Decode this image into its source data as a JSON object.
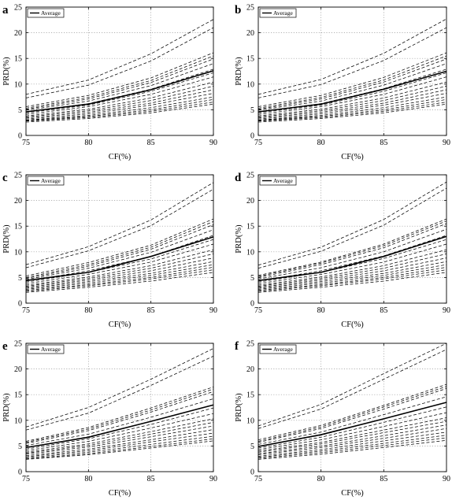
{
  "figure": {
    "x_axis_label": "CF(%)",
    "y_axis_label": "PRD(%)",
    "legend_label": "Average"
  },
  "chart_data": [
    {
      "panel": "a",
      "type": "line",
      "xlabel": "CF(%)",
      "ylabel": "PRD(%)",
      "xlim": [
        75,
        90
      ],
      "ylim": [
        0,
        25
      ],
      "xticks": [
        75,
        80,
        85,
        90
      ],
      "yticks": [
        0,
        5,
        10,
        15,
        20,
        25
      ],
      "grid": true,
      "legend_position": "top-left",
      "x": [
        75,
        80,
        85,
        90
      ],
      "average": [
        4.6,
        6.1,
        8.9,
        12.6
      ],
      "lines": [
        [
          8.0,
          10.8,
          15.9,
          22.6
        ],
        [
          7.3,
          9.8,
          14.5,
          21.0
        ],
        [
          5.6,
          7.8,
          11.2,
          16.1
        ],
        [
          5.3,
          7.4,
          10.7,
          15.5
        ],
        [
          5.1,
          7.1,
          10.3,
          14.9
        ],
        [
          4.9,
          6.7,
          9.7,
          14.0
        ],
        [
          4.6,
          6.2,
          9.0,
          12.9
        ],
        [
          4.4,
          5.9,
          8.6,
          12.2
        ],
        [
          4.1,
          5.6,
          8.0,
          11.4
        ],
        [
          3.8,
          5.1,
          7.3,
          10.4
        ],
        [
          3.6,
          4.8,
          6.8,
          9.6
        ],
        [
          3.4,
          4.5,
          6.3,
          8.9
        ],
        [
          3.2,
          4.2,
          5.9,
          8.2
        ],
        [
          3.0,
          3.9,
          5.4,
          7.5
        ],
        [
          2.9,
          3.7,
          5.0,
          7.0
        ],
        [
          2.8,
          3.5,
          4.7,
          6.5
        ],
        [
          2.6,
          3.3,
          4.4,
          6.1
        ]
      ]
    },
    {
      "panel": "b",
      "type": "line",
      "xlabel": "CF(%)",
      "ylabel": "PRD(%)",
      "xlim": [
        75,
        90
      ],
      "ylim": [
        0,
        25
      ],
      "xticks": [
        75,
        80,
        85,
        90
      ],
      "yticks": [
        0,
        5,
        10,
        15,
        20,
        25
      ],
      "grid": true,
      "legend_position": "top-left",
      "x": [
        75,
        80,
        85,
        90
      ],
      "average": [
        4.6,
        6.1,
        9.0,
        12.5
      ],
      "lines": [
        [
          8.0,
          10.9,
          16.0,
          22.7
        ],
        [
          7.3,
          9.9,
          14.6,
          21.0
        ],
        [
          5.6,
          7.8,
          11.3,
          16.1
        ],
        [
          5.3,
          7.4,
          10.8,
          15.5
        ],
        [
          5.1,
          7.1,
          10.4,
          14.9
        ],
        [
          4.9,
          6.7,
          9.8,
          14.0
        ],
        [
          4.6,
          6.2,
          9.1,
          12.9
        ],
        [
          4.4,
          5.9,
          8.6,
          12.2
        ],
        [
          4.1,
          5.6,
          8.0,
          11.4
        ],
        [
          3.8,
          5.1,
          7.3,
          10.4
        ],
        [
          3.6,
          4.8,
          6.8,
          9.6
        ],
        [
          3.4,
          4.5,
          6.3,
          8.9
        ],
        [
          3.2,
          4.2,
          5.9,
          8.2
        ],
        [
          3.0,
          3.9,
          5.4,
          7.5
        ],
        [
          2.9,
          3.7,
          5.0,
          7.0
        ],
        [
          2.8,
          3.5,
          4.7,
          6.5
        ],
        [
          2.6,
          3.3,
          4.4,
          6.1
        ]
      ]
    },
    {
      "panel": "c",
      "type": "line",
      "xlabel": "CF(%)",
      "ylabel": "PRD(%)",
      "xlim": [
        75,
        90
      ],
      "ylim": [
        0,
        25
      ],
      "xticks": [
        75,
        80,
        85,
        90
      ],
      "yticks": [
        0,
        5,
        10,
        15,
        20,
        25
      ],
      "grid": true,
      "legend_position": "top-left",
      "x": [
        75,
        80,
        85,
        90
      ],
      "average": [
        4.4,
        6.0,
        9.1,
        12.9
      ],
      "lines": [
        [
          7.5,
          11.0,
          16.2,
          23.5
        ],
        [
          6.9,
          10.2,
          15.1,
          22.2
        ],
        [
          5.3,
          7.9,
          11.3,
          16.4
        ],
        [
          5.0,
          7.5,
          10.9,
          15.9
        ],
        [
          4.8,
          7.2,
          10.5,
          15.3
        ],
        [
          4.6,
          6.8,
          9.9,
          14.3
        ],
        [
          4.3,
          6.3,
          9.1,
          13.2
        ],
        [
          4.1,
          6.0,
          8.6,
          12.4
        ],
        [
          3.8,
          5.6,
          8.0,
          11.5
        ],
        [
          3.5,
          5.1,
          7.3,
          10.4
        ],
        [
          3.3,
          4.8,
          6.8,
          9.6
        ],
        [
          3.1,
          4.5,
          6.3,
          8.8
        ],
        [
          2.9,
          4.2,
          5.8,
          8.1
        ],
        [
          2.7,
          3.9,
          5.4,
          7.5
        ],
        [
          2.5,
          3.6,
          5.0,
          7.0
        ],
        [
          2.3,
          3.4,
          4.7,
          6.5
        ],
        [
          2.1,
          3.1,
          4.3,
          6.0
        ]
      ]
    },
    {
      "panel": "d",
      "type": "line",
      "xlabel": "CF(%)",
      "ylabel": "PRD(%)",
      "xlim": [
        75,
        90
      ],
      "ylim": [
        0,
        25
      ],
      "xticks": [
        75,
        80,
        85,
        90
      ],
      "yticks": [
        0,
        5,
        10,
        15,
        20,
        25
      ],
      "grid": true,
      "legend_position": "top-left",
      "x": [
        75,
        80,
        85,
        90
      ],
      "average": [
        4.4,
        6.0,
        9.1,
        13.0
      ],
      "lines": [
        [
          7.4,
          10.9,
          16.3,
          23.6
        ],
        [
          6.8,
          10.1,
          15.2,
          22.4
        ],
        [
          5.4,
          8.0,
          11.5,
          16.4
        ],
        [
          5.2,
          7.8,
          11.2,
          16.0
        ],
        [
          5.0,
          7.5,
          10.8,
          15.5
        ],
        [
          4.7,
          6.9,
          10.0,
          14.4
        ],
        [
          4.3,
          6.3,
          9.2,
          13.2
        ],
        [
          4.1,
          6.0,
          8.7,
          12.4
        ],
        [
          3.8,
          5.6,
          8.0,
          11.5
        ],
        [
          3.5,
          5.1,
          7.3,
          10.4
        ],
        [
          3.3,
          4.8,
          6.8,
          9.6
        ],
        [
          3.1,
          4.5,
          6.3,
          8.8
        ],
        [
          2.9,
          4.2,
          5.8,
          8.1
        ],
        [
          2.7,
          3.9,
          5.4,
          7.5
        ],
        [
          2.5,
          3.6,
          5.0,
          7.0
        ],
        [
          2.3,
          3.4,
          4.7,
          6.5
        ],
        [
          2.1,
          3.1,
          4.3,
          6.0
        ]
      ]
    },
    {
      "panel": "e",
      "type": "line",
      "xlabel": "CF(%)",
      "ylabel": "PRD(%)",
      "xlim": [
        75,
        90
      ],
      "ylim": [
        0,
        25
      ],
      "xticks": [
        75,
        80,
        85,
        90
      ],
      "yticks": [
        0,
        5,
        10,
        15,
        20,
        25
      ],
      "grid": true,
      "legend_position": "top-left",
      "x": [
        75,
        80,
        85,
        90
      ],
      "average": [
        4.7,
        6.7,
        9.8,
        13.0
      ],
      "lines": [
        [
          8.7,
          12.5,
          18.0,
          24.0
        ],
        [
          8.1,
          11.4,
          16.8,
          22.5
        ],
        [
          5.9,
          8.6,
          12.4,
          16.5
        ],
        [
          5.7,
          8.3,
          12.0,
          16.1
        ],
        [
          5.5,
          8.0,
          11.6,
          15.6
        ],
        [
          5.1,
          7.3,
          10.6,
          14.2
        ],
        [
          4.7,
          6.8,
          9.8,
          13.0
        ],
        [
          4.4,
          6.4,
          9.2,
          12.4
        ],
        [
          4.1,
          5.9,
          8.5,
          11.3
        ],
        [
          3.8,
          5.4,
          7.8,
          10.3
        ],
        [
          3.6,
          5.1,
          7.3,
          9.6
        ],
        [
          3.4,
          4.8,
          6.8,
          8.9
        ],
        [
          3.1,
          4.4,
          6.2,
          8.2
        ],
        [
          2.9,
          4.1,
          5.8,
          7.5
        ],
        [
          2.7,
          3.8,
          5.3,
          6.9
        ],
        [
          2.5,
          3.5,
          4.9,
          6.4
        ],
        [
          2.4,
          3.3,
          4.6,
          6.0
        ]
      ]
    },
    {
      "panel": "f",
      "type": "line",
      "xlabel": "CF(%)",
      "ylabel": "PRD(%)",
      "xlim": [
        75,
        90
      ],
      "ylim": [
        0,
        25
      ],
      "xticks": [
        75,
        80,
        85,
        90
      ],
      "yticks": [
        0,
        5,
        10,
        15,
        20,
        25
      ],
      "grid": true,
      "legend_position": "top-left",
      "x": [
        75,
        80,
        85,
        90
      ],
      "average": [
        4.9,
        7.2,
        10.3,
        13.5
      ],
      "lines": [
        [
          8.9,
          13.1,
          19.1,
          25.0
        ],
        [
          8.4,
          12.2,
          18.0,
          23.8
        ],
        [
          6.2,
          9.0,
          12.9,
          17.0
        ],
        [
          5.9,
          8.7,
          12.6,
          16.6
        ],
        [
          5.7,
          8.4,
          12.2,
          16.2
        ],
        [
          5.3,
          7.7,
          11.1,
          14.6
        ],
        [
          4.9,
          7.1,
          10.3,
          13.5
        ],
        [
          4.6,
          6.7,
          9.6,
          12.6
        ],
        [
          4.3,
          6.2,
          8.8,
          11.5
        ],
        [
          4.0,
          5.7,
          8.1,
          10.5
        ],
        [
          3.8,
          5.4,
          7.6,
          9.8
        ],
        [
          3.5,
          5.0,
          7.0,
          9.1
        ],
        [
          3.3,
          4.7,
          6.5,
          8.4
        ],
        [
          3.0,
          4.3,
          6.0,
          7.7
        ],
        [
          2.8,
          4.0,
          5.5,
          7.1
        ],
        [
          2.6,
          3.7,
          5.1,
          6.6
        ],
        [
          2.4,
          3.4,
          4.7,
          6.1
        ]
      ]
    }
  ]
}
